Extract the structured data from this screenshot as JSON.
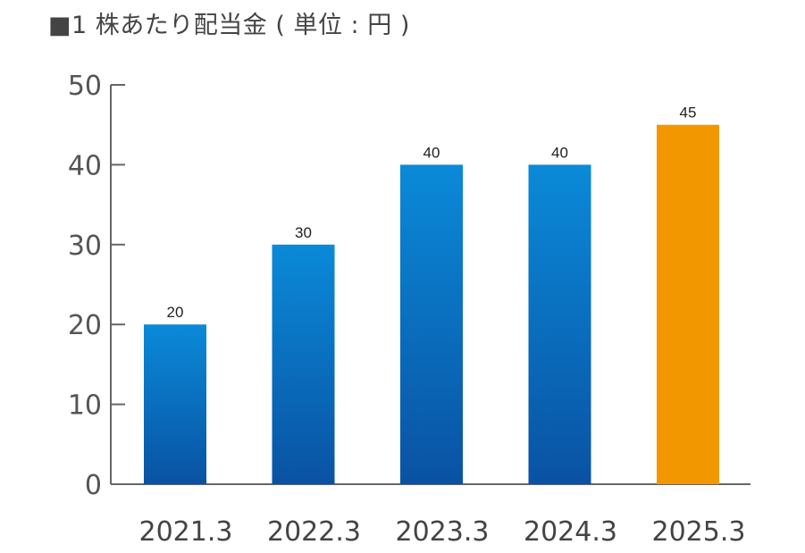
{
  "chart_data": {
    "type": "bar",
    "title": "■1 株あたり配当金 ( 単位 : 円 )",
    "categories": [
      "2021.3",
      "2022.3",
      "2023.3",
      "2024.3",
      "2025.3"
    ],
    "values": [
      20,
      30,
      40,
      40,
      45
    ],
    "data_labels": [
      "20",
      "30",
      "40",
      "40",
      "45"
    ],
    "ylim": [
      0,
      50
    ],
    "yticks": [
      0,
      10,
      20,
      30,
      40,
      50
    ],
    "ytick_labels": [
      "0",
      "10",
      "20",
      "30",
      "40",
      "50"
    ],
    "xlabel": "",
    "ylabel": "",
    "grid": false,
    "colors": {
      "bar_top": "#0a8ad8",
      "bar_bottom": "#0a52a3",
      "highlight": "#f39700",
      "axis": "#666666"
    },
    "highlight_index": 4
  }
}
